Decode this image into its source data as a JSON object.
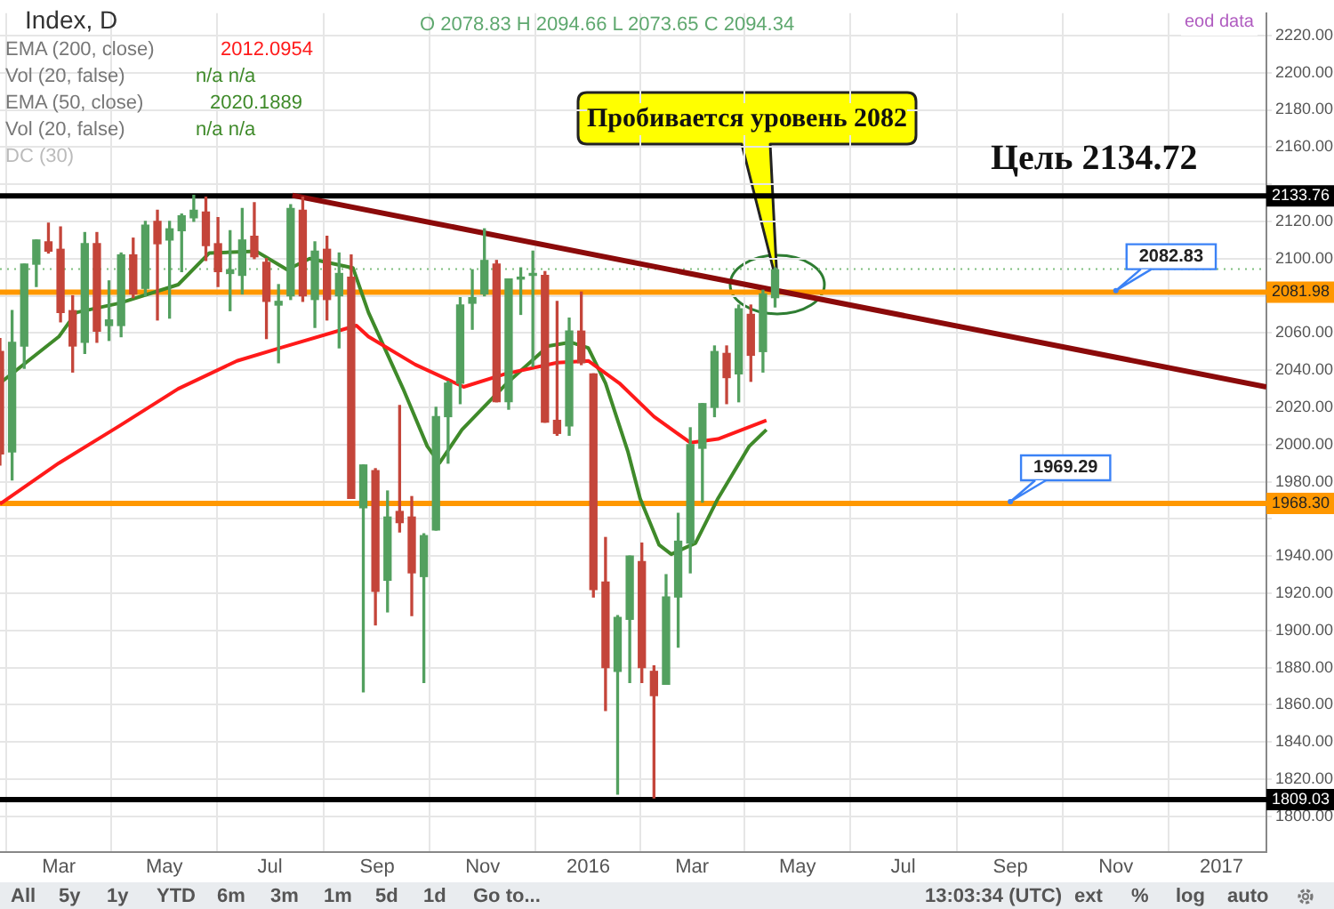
{
  "chart_data": {
    "type": "candlestick",
    "title": "Index, D",
    "x": [
      "2015-01-26",
      "2015-02-02",
      "2015-02-09",
      "2015-02-16",
      "2015-02-23",
      "2015-03-02",
      "2015-03-09",
      "2015-03-16",
      "2015-03-23",
      "2015-03-30",
      "2015-04-06",
      "2015-04-13",
      "2015-04-20",
      "2015-04-27",
      "2015-05-04",
      "2015-05-11",
      "2015-05-18",
      "2015-05-25",
      "2015-06-01",
      "2015-06-08",
      "2015-06-15",
      "2015-06-22",
      "2015-06-29",
      "2015-07-06",
      "2015-07-13",
      "2015-07-20",
      "2015-07-27",
      "2015-08-03",
      "2015-08-10",
      "2015-08-17",
      "2015-08-24",
      "2015-08-31",
      "2015-09-07",
      "2015-09-14",
      "2015-09-21",
      "2015-09-28",
      "2015-10-05",
      "2015-10-12",
      "2015-10-19",
      "2015-10-26",
      "2015-11-02",
      "2015-11-09",
      "2015-11-16",
      "2015-11-23",
      "2015-11-30",
      "2015-12-07",
      "2015-12-14",
      "2015-12-21",
      "2015-12-28",
      "2016-01-04",
      "2016-01-11",
      "2016-01-18",
      "2016-01-25",
      "2016-02-01",
      "2016-02-08",
      "2016-02-15",
      "2016-02-22",
      "2016-02-29",
      "2016-03-07",
      "2016-03-14",
      "2016-03-21",
      "2016-03-28",
      "2016-04-04",
      "2016-04-11",
      "2016-04-18"
    ],
    "ohlc": [
      [
        2050,
        2057,
        1989,
        1995
      ],
      [
        1996,
        2072,
        1981,
        2055
      ],
      [
        2053,
        2097,
        2041,
        2097
      ],
      [
        2097,
        2110,
        2085,
        2110
      ],
      [
        2109,
        2119,
        2103,
        2104
      ],
      [
        2105,
        2117,
        2066,
        2071
      ],
      [
        2072,
        2080,
        2039,
        2053
      ],
      [
        2055,
        2114,
        2049,
        2108
      ],
      [
        2108,
        2114,
        2055,
        2061
      ],
      [
        2064,
        2088,
        2056,
        2067
      ],
      [
        2064,
        2103,
        2058,
        2102
      ],
      [
        2102,
        2111,
        2079,
        2081
      ],
      [
        2084,
        2120,
        2080,
        2118
      ],
      [
        2120,
        2126,
        2067,
        2108
      ],
      [
        2110,
        2120,
        2068,
        2116
      ],
      [
        2115,
        2124,
        2093,
        2123
      ],
      [
        2122,
        2134,
        2120,
        2126
      ],
      [
        2125,
        2133,
        2099,
        2107
      ],
      [
        2108,
        2122,
        2085,
        2093
      ],
      [
        2092,
        2115,
        2072,
        2094
      ],
      [
        2091,
        2127,
        2081,
        2110
      ],
      [
        2112,
        2130,
        2100,
        2101
      ],
      [
        2098,
        2100,
        2057,
        2077
      ],
      [
        2075,
        2086,
        2044,
        2077
      ],
      [
        2080,
        2129,
        2078,
        2127
      ],
      [
        2126,
        2133,
        2077,
        2080
      ],
      [
        2078,
        2109,
        2063,
        2104
      ],
      [
        2105,
        2112,
        2067,
        2078
      ],
      [
        2080,
        2103,
        2052,
        2092
      ],
      [
        2090,
        2102,
        1971,
        1971
      ],
      [
        1966,
        1989,
        1867,
        1989
      ],
      [
        1986,
        1987,
        1903,
        1921
      ],
      [
        1927,
        1975,
        1910,
        1961
      ],
      [
        1964,
        2021,
        1953,
        1958
      ],
      [
        1961,
        1972,
        1908,
        1931
      ],
      [
        1929,
        1952,
        1872,
        1951
      ],
      [
        1954,
        2020,
        1954,
        2015
      ],
      [
        2015,
        2034,
        1990,
        2033
      ],
      [
        2033,
        2079,
        2022,
        2075
      ],
      [
        2076,
        2094,
        2062,
        2079
      ],
      [
        2081,
        2116,
        2080,
        2099
      ],
      [
        2097,
        2099,
        2023,
        2023
      ],
      [
        2023,
        2089,
        2019,
        2089
      ],
      [
        2089,
        2095,
        2070,
        2090
      ],
      [
        2091,
        2104,
        2042,
        2092
      ],
      [
        2091,
        2093,
        2012,
        2012
      ],
      [
        2013,
        2077,
        2005,
        2006
      ],
      [
        2010,
        2068,
        2005,
        2061
      ],
      [
        2061,
        2082,
        2043,
        2044
      ],
      [
        2038,
        2038,
        1918,
        1922
      ],
      [
        1926,
        1950,
        1857,
        1880
      ],
      [
        1878,
        1908,
        1812,
        1907
      ],
      [
        1906,
        1940,
        1872,
        1940
      ],
      [
        1937,
        1947,
        1872,
        1880
      ],
      [
        1878,
        1881,
        1810,
        1865
      ],
      [
        1871,
        1930,
        1871,
        1918
      ],
      [
        1918,
        1963,
        1891,
        1948
      ],
      [
        1947,
        2009,
        1931,
        2000
      ],
      [
        1998,
        2022,
        1969,
        2022
      ],
      [
        2020,
        2053,
        2015,
        2050
      ],
      [
        2049,
        2053,
        2022,
        2036
      ],
      [
        2038,
        2075,
        2023,
        2073
      ],
      [
        2070,
        2075,
        2034,
        2048
      ],
      [
        2050,
        2083,
        2039,
        2081
      ],
      [
        2079,
        2095,
        2074,
        2094
      ]
    ],
    "colors": [
      "#c4453a",
      "#53a05f",
      "#53a05f",
      "#53a05f",
      "#c4453a",
      "#c4453a",
      "#c4453a",
      "#53a05f",
      "#c4453a",
      "#53a05f",
      "#53a05f",
      "#c4453a",
      "#53a05f",
      "#c4453a",
      "#53a05f",
      "#53a05f",
      "#53a05f",
      "#c4453a",
      "#c4453a",
      "#53a05f",
      "#53a05f",
      "#c4453a",
      "#c4453a",
      "#53a05f",
      "#53a05f",
      "#c4453a",
      "#53a05f",
      "#c4453a",
      "#53a05f",
      "#c4453a",
      "#53a05f",
      "#c4453a",
      "#53a05f",
      "#c4453a",
      "#c4453a",
      "#53a05f",
      "#53a05f",
      "#53a05f",
      "#53a05f",
      "#53a05f",
      "#53a05f",
      "#c4453a",
      "#53a05f",
      "#53a05f",
      "#53a05f",
      "#c4453a",
      "#c4453a",
      "#53a05f",
      "#c4453a",
      "#c4453a",
      "#c4453a",
      "#53a05f",
      "#53a05f",
      "#c4453a",
      "#c4453a",
      "#53a05f",
      "#53a05f",
      "#53a05f",
      "#53a05f",
      "#53a05f",
      "#c4453a",
      "#53a05f",
      "#c4453a",
      "#53a05f",
      "#53a05f"
    ],
    "series": [
      {
        "type": "line",
        "color": "#ff1a1a",
        "x": [
          "2015-01-26",
          "2015-03-01",
          "2015-04-05",
          "2015-05-09",
          "2015-06-12",
          "2015-07-07",
          "2015-08-20",
          "2015-08-27",
          "2015-09-23",
          "2015-10-21",
          "2015-11-14",
          "2015-12-14",
          "2016-01-01",
          "2016-01-19",
          "2016-02-08",
          "2016-02-29",
          "2016-03-16",
          "2016-04-13"
        ],
        "values": [
          1968,
          1990,
          2010,
          2030,
          2045,
          2052,
          2064,
          2058,
          2043,
          2031,
          2038,
          2044,
          2045,
          2033,
          2015,
          2001,
          2003,
          2013
        ]
      },
      {
        "type": "line",
        "color": "#3f8a2a",
        "x": [
          "2015-01-26",
          "2015-03-01",
          "2015-03-11",
          "2015-04-05",
          "2015-05-09",
          "2015-05-27",
          "2015-06-23",
          "2015-07-11",
          "2015-07-24",
          "2015-08-18",
          "2015-08-27",
          "2015-09-16",
          "2015-09-30",
          "2015-10-07",
          "2015-10-20",
          "2015-11-15",
          "2015-12-09",
          "2015-12-22",
          "2016-01-01",
          "2016-01-11",
          "2016-01-24",
          "2016-01-31",
          "2016-02-11",
          "2016-02-18",
          "2016-03-03",
          "2016-03-16",
          "2016-04-03",
          "2016-04-13"
        ],
        "values": [
          2033,
          2058,
          2071,
          2076,
          2086,
          2103,
          2104,
          2094,
          2100,
          2095,
          2071,
          2030,
          1999,
          1990,
          2008,
          2033,
          2053,
          2055,
          2052,
          2033,
          1996,
          1971,
          1946,
          1941,
          1947,
          1971,
          1999,
          2008
        ]
      },
      {
        "type": "line",
        "color": "#8b0a0a",
        "x": [
          "2015-07-14",
          "2017-01-27"
        ],
        "values": [
          2134,
          2031
        ]
      }
    ],
    "xlim": [
      "2015-01-26",
      "2017-01-27"
    ],
    "xticks": [
      {
        "value": "2015-03-01",
        "label": "Mar"
      },
      {
        "value": "2015-05-01",
        "label": "May"
      },
      {
        "value": "2015-07-01",
        "label": "Jul"
      },
      {
        "value": "2015-09-01",
        "label": "Sep"
      },
      {
        "value": "2015-11-01",
        "label": "Nov"
      },
      {
        "value": "2016-01-01",
        "label": "2016"
      },
      {
        "value": "2016-03-01",
        "label": "Mar"
      },
      {
        "value": "2016-05-01",
        "label": "May"
      },
      {
        "value": "2016-07-01",
        "label": "Jul"
      },
      {
        "value": "2016-09-01",
        "label": "Sep"
      },
      {
        "value": "2016-11-01",
        "label": "Nov"
      },
      {
        "value": "2017-01-01",
        "label": "2017"
      }
    ],
    "ylim": [
      1781,
      2232
    ],
    "yticks": [
      {
        "value": 1800,
        "label": "1800.00"
      },
      {
        "value": 1820,
        "label": "1820.00"
      },
      {
        "value": 1840,
        "label": "1840.00"
      },
      {
        "value": 1860,
        "label": "1860.00"
      },
      {
        "value": 1880,
        "label": "1880.00"
      },
      {
        "value": 1900,
        "label": "1900.00"
      },
      {
        "value": 1920,
        "label": "1920.00"
      },
      {
        "value": 1940,
        "label": "1940.00"
      },
      {
        "value": 1960,
        "label": null
      },
      {
        "value": 1980,
        "label": "1980.00"
      },
      {
        "value": 2000,
        "label": "2000.00"
      },
      {
        "value": 2020,
        "label": "2020.00"
      },
      {
        "value": 2040,
        "label": "2040.00"
      },
      {
        "value": 2060,
        "label": "2060.00"
      },
      {
        "value": 2080,
        "label": null
      },
      {
        "value": 2100,
        "label": "2100.00"
      },
      {
        "value": 2120,
        "label": "2120.00"
      },
      {
        "value": 2140,
        "label": null
      },
      {
        "value": 2160,
        "label": "2160.00"
      },
      {
        "value": 2180,
        "label": "2180.00"
      },
      {
        "value": 2200,
        "label": "2200.00"
      },
      {
        "value": 2220,
        "label": "2220.00"
      }
    ],
    "ref_lines": [
      {
        "axis": "y",
        "value": 2133.76,
        "label": "2133.76",
        "color": "#000000"
      },
      {
        "axis": "y",
        "value": 2081.98,
        "label": "2081.98",
        "color": "#ff9800"
      },
      {
        "axis": "y",
        "value": 1968.3,
        "label": "1968.30",
        "color": "#ff9800"
      },
      {
        "axis": "y",
        "value": 1809.03,
        "label": "1809.03",
        "color": "#000000"
      },
      {
        "axis": "y",
        "value": 2094.34,
        "color": "#7fbf7f",
        "line_style": "dotted"
      }
    ],
    "annotations": [
      "O 2078.83 H 2094.66 L 2073.65 C 2094.34",
      "EMA (200, close)",
      "2012.0954",
      "Vol (20, false)",
      "n/a n/a",
      "EMA (50, close)",
      "2020.1889",
      "Vol (20, false)",
      "n/a n/a",
      "DC (30)",
      "eod data",
      "Пробивается уровень 2082",
      "Цель 2134.72",
      {
        "text": "2082.83",
        "x": "2016-11-01",
        "y": 2082.83
      },
      {
        "text": "1969.29",
        "x": "2016-09-01",
        "y": 1969.29
      },
      "All",
      "5y",
      "1y",
      "YTD",
      "6m",
      "3m",
      "1m",
      "5d",
      "1d",
      "Go to...",
      "13:03:34 (UTC)",
      "ext",
      "%",
      "log",
      "auto"
    ],
    "grid": true,
    "legend": false
  }
}
